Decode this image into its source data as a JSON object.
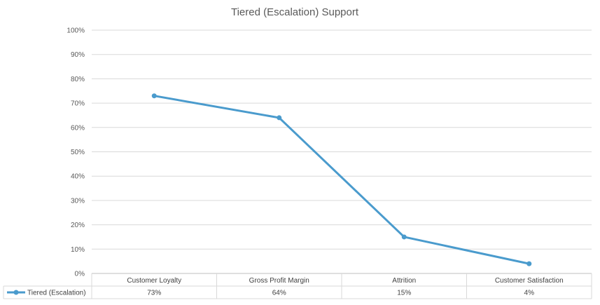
{
  "chart_data": {
    "type": "line",
    "title": "Tiered (Escalation) Support",
    "categories": [
      "Customer Loyalty",
      "Gross Profit Margin",
      "Attrition",
      "Customer Satisfaction"
    ],
    "series": [
      {
        "name": "Tiered (Escalation)",
        "values": [
          0.73,
          0.64,
          0.15,
          0.04
        ],
        "labels": [
          "73%",
          "64%",
          "15%",
          "4%"
        ],
        "color": "#4A9BCD"
      }
    ],
    "ylim": [
      0,
      1
    ],
    "yticks": [
      "0%",
      "10%",
      "20%",
      "30%",
      "40%",
      "50%",
      "60%",
      "70%",
      "80%",
      "90%",
      "100%"
    ],
    "grid": true,
    "legend": "data-table",
    "xlabel": "",
    "ylabel": ""
  }
}
